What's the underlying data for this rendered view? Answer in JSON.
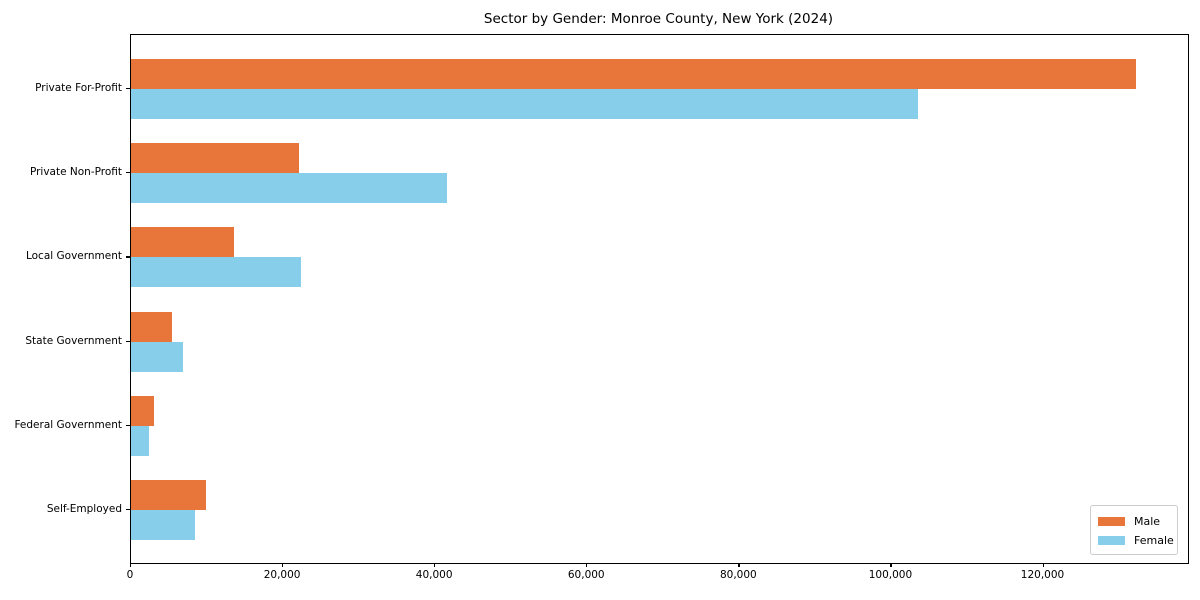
{
  "chart_data": {
    "type": "bar",
    "orientation": "horizontal",
    "title": "Sector by Gender: Monroe County, New York (2024)",
    "xlabel": "",
    "ylabel": "",
    "categories": [
      "Private For-Profit",
      "Private Non-Profit",
      "Local Government",
      "State Government",
      "Federal Government",
      "Self-Employed"
    ],
    "series": [
      {
        "name": "Male",
        "color": "#E8763B",
        "values": [
          132200,
          22100,
          13600,
          5400,
          3000,
          9900
        ]
      },
      {
        "name": "Female",
        "color": "#87CEEB",
        "values": [
          103500,
          41600,
          22400,
          6900,
          2400,
          8400
        ]
      }
    ],
    "xlim": [
      0,
      139000
    ],
    "x_ticks": [
      0,
      20000,
      40000,
      60000,
      80000,
      100000,
      120000
    ],
    "x_tick_labels": [
      "0",
      "20,000",
      "40,000",
      "60,000",
      "80,000",
      "100,000",
      "120,000"
    ],
    "grid": false,
    "legend_position": "lower right"
  }
}
